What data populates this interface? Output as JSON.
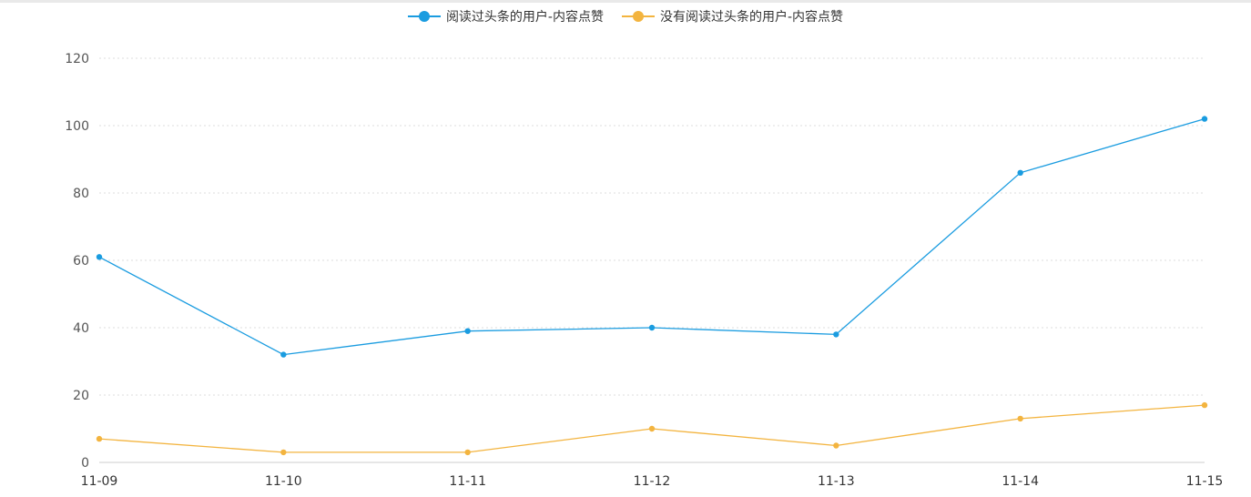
{
  "chart_data": {
    "type": "line",
    "x": [
      "11-09",
      "11-10",
      "11-11",
      "11-12",
      "11-13",
      "11-14",
      "11-15"
    ],
    "series": [
      {
        "name": "阅读过头条的用户-内容点赞",
        "color": "#1a9ce0",
        "values": [
          61,
          32,
          39,
          40,
          38,
          86,
          102
        ]
      },
      {
        "name": "没有阅读过头条的用户-内容点赞",
        "color": "#f3b43f",
        "values": [
          7,
          3,
          3,
          10,
          5,
          13,
          17
        ]
      }
    ],
    "ylim": [
      0,
      120
    ],
    "yticks": [
      0,
      20,
      40,
      60,
      80,
      100,
      120
    ],
    "grid": true,
    "legend_position": "top-center"
  }
}
